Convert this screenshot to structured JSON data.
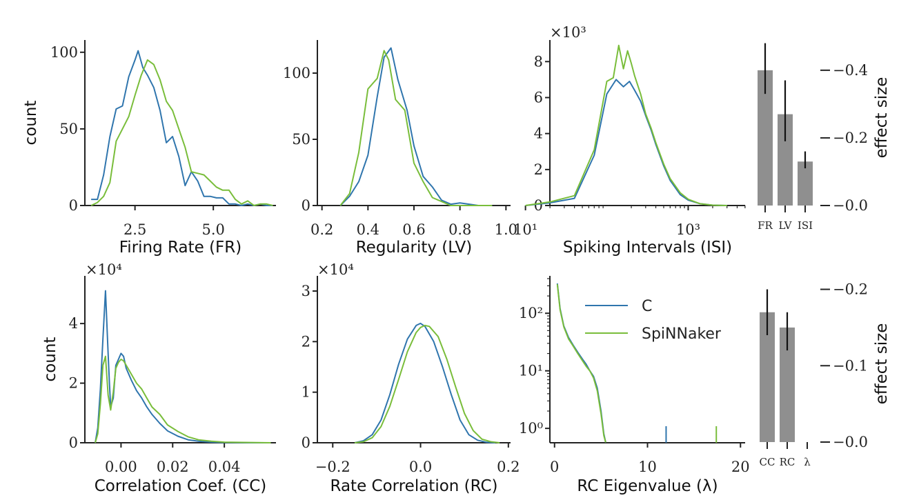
{
  "colors": {
    "C": "#2f75ad",
    "SpiNNaker": "#79bd3a",
    "bar": "#8f8f8f",
    "axis": "#222222"
  },
  "chart_data": [
    {
      "id": "fr",
      "type": "line",
      "xlabel": "Firing Rate (FR)",
      "ylabel": "count",
      "xlim": [
        0.9,
        7.0
      ],
      "ylim": [
        0,
        108
      ],
      "xticks": [
        {
          "v": 2.5,
          "label": "2.5"
        },
        {
          "v": 5.0,
          "label": "5.0"
        }
      ],
      "yticks": [
        {
          "v": 0,
          "label": "0"
        },
        {
          "v": 50,
          "label": "50"
        },
        {
          "v": 100,
          "label": "100"
        }
      ],
      "series": [
        {
          "name": "C",
          "x": [
            1.1,
            1.3,
            1.5,
            1.7,
            1.9,
            2.1,
            2.3,
            2.5,
            2.6,
            2.75,
            2.9,
            3.1,
            3.3,
            3.5,
            3.7,
            3.9,
            4.1,
            4.3,
            4.5,
            4.7,
            4.9,
            5.1,
            5.3,
            5.5,
            5.7,
            5.9,
            6.1,
            6.3,
            6.5,
            6.7,
            6.9
          ],
          "y": [
            4,
            4,
            20,
            45,
            63,
            65,
            84,
            95,
            101,
            90,
            85,
            77,
            62,
            41,
            45,
            32,
            13,
            22,
            16,
            6,
            6,
            5,
            5,
            1,
            1,
            0,
            1,
            0,
            1,
            0,
            0
          ]
        },
        {
          "name": "SpiNNaker",
          "x": [
            1.1,
            1.3,
            1.5,
            1.7,
            1.9,
            2.1,
            2.3,
            2.5,
            2.7,
            2.9,
            3.1,
            3.3,
            3.5,
            3.7,
            3.9,
            4.1,
            4.3,
            4.5,
            4.7,
            4.9,
            5.1,
            5.3,
            5.5,
            5.7,
            5.9,
            6.1,
            6.3,
            6.5,
            6.7,
            6.9
          ],
          "y": [
            0,
            2,
            6,
            15,
            42,
            50,
            58,
            72,
            85,
            95,
            92,
            82,
            68,
            62,
            50,
            38,
            22,
            21,
            20,
            16,
            12,
            10,
            10,
            4,
            1,
            3,
            0,
            1,
            1,
            0
          ]
        }
      ]
    },
    {
      "id": "lv",
      "type": "line",
      "xlabel": "Regularity (LV)",
      "ylabel": "",
      "xlim": [
        0.18,
        1.02
      ],
      "ylim": [
        0,
        125
      ],
      "xticks": [
        {
          "v": 0.2,
          "label": "0.2"
        },
        {
          "v": 0.4,
          "label": "0.4"
        },
        {
          "v": 0.6,
          "label": "0.6"
        },
        {
          "v": 0.8,
          "label": "0.8"
        },
        {
          "v": 1.0,
          "label": "1.0"
        }
      ],
      "yticks": [
        {
          "v": 0,
          "label": "0"
        },
        {
          "v": 50,
          "label": "50"
        },
        {
          "v": 100,
          "label": "100"
        }
      ],
      "series": [
        {
          "name": "C",
          "x": [
            0.28,
            0.32,
            0.36,
            0.4,
            0.44,
            0.47,
            0.5,
            0.53,
            0.57,
            0.6,
            0.64,
            0.68,
            0.72,
            0.76,
            0.8,
            0.84,
            0.88,
            0.94
          ],
          "y": [
            0,
            7,
            18,
            38,
            82,
            112,
            119,
            95,
            72,
            45,
            22,
            14,
            4,
            1,
            2,
            1,
            0,
            0
          ]
        },
        {
          "name": "SpiNNaker",
          "x": [
            0.28,
            0.32,
            0.36,
            0.4,
            0.44,
            0.47,
            0.49,
            0.52,
            0.56,
            0.6,
            0.64,
            0.68,
            0.72,
            0.76,
            0.8,
            0.84,
            0.88,
            0.94
          ],
          "y": [
            0,
            9,
            40,
            88,
            96,
            117,
            110,
            80,
            72,
            32,
            18,
            6,
            3,
            0,
            0,
            0,
            0,
            0
          ]
        }
      ]
    },
    {
      "id": "isi",
      "type": "line",
      "xscale": "log",
      "xlabel": "Spiking Intervals (ISI)",
      "ylabel": "",
      "multiplier": "×10³",
      "xlim": [
        1.3,
        3.7
      ],
      "ylim": [
        0,
        9.2
      ],
      "xticks": [
        {
          "v": 10,
          "label": "10¹"
        },
        {
          "v": 1000,
          "label": "10³"
        }
      ],
      "yticks": [
        {
          "v": 0,
          "label": "0"
        },
        {
          "v": 2,
          "label": "2"
        },
        {
          "v": 4,
          "label": "4"
        },
        {
          "v": 6,
          "label": "6"
        },
        {
          "v": 8,
          "label": "8"
        }
      ],
      "series": [
        {
          "name": "C",
          "x": [
            10,
            20,
            40,
            70,
            100,
            130,
            160,
            190,
            220,
            260,
            300,
            350,
            400,
            500,
            600,
            800,
            1000,
            1400,
            2000,
            3000
          ],
          "y": [
            0,
            0.15,
            0.4,
            2.8,
            6.2,
            7.0,
            6.6,
            6.9,
            6.4,
            5.8,
            5.0,
            4.2,
            3.4,
            2.2,
            1.4,
            0.6,
            0.3,
            0.1,
            0.02,
            0
          ]
        },
        {
          "name": "SpiNNaker",
          "x": [
            10,
            20,
            40,
            70,
            100,
            120,
            140,
            160,
            180,
            200,
            220,
            260,
            300,
            350,
            400,
            500,
            600,
            800,
            1000,
            1400,
            2000,
            3000
          ],
          "y": [
            0,
            0.2,
            0.55,
            3.1,
            6.9,
            7.1,
            8.9,
            7.6,
            8.6,
            7.9,
            7.2,
            6.2,
            5.1,
            4.3,
            3.5,
            2.3,
            1.5,
            0.7,
            0.35,
            0.1,
            0.02,
            0
          ]
        }
      ]
    },
    {
      "id": "es1",
      "type": "bar",
      "ylabel": "effect size",
      "categories": [
        "FR",
        "LV",
        "ISI"
      ],
      "values": [
        0.4,
        0.27,
        0.13
      ],
      "err_low": [
        0.33,
        0.19,
        0.11
      ],
      "err_high": [
        0.48,
        0.37,
        0.16
      ],
      "ylim": [
        0,
        0.52
      ],
      "yticks": [
        {
          "v": 0.0,
          "label": "0.0"
        },
        {
          "v": 0.2,
          "label": "0.2"
        },
        {
          "v": 0.4,
          "label": "0.4"
        }
      ],
      "tick_prefix": "−"
    },
    {
      "id": "cc",
      "type": "line",
      "xlabel": "Correlation Coef. (CC)",
      "ylabel": "count",
      "multiplier": "×10⁴",
      "xlim": [
        -0.014,
        0.06
      ],
      "ylim": [
        0,
        5.6
      ],
      "xticks": [
        {
          "v": 0.0,
          "label": "0.00"
        },
        {
          "v": 0.02,
          "label": "0.02"
        },
        {
          "v": 0.04,
          "label": "0.04"
        }
      ],
      "yticks": [
        {
          "v": 0,
          "label": "0"
        },
        {
          "v": 2,
          "label": "2"
        },
        {
          "v": 4,
          "label": "4"
        }
      ],
      "series": [
        {
          "name": "C",
          "x": [
            -0.01,
            -0.009,
            -0.008,
            -0.007,
            -0.006,
            -0.005,
            -0.0045,
            -0.004,
            -0.003,
            -0.002,
            -0.001,
            0.0,
            0.001,
            0.002,
            0.004,
            0.006,
            0.008,
            0.01,
            0.012,
            0.015,
            0.018,
            0.022,
            0.026,
            0.03,
            0.035,
            0.04,
            0.05,
            0.058
          ],
          "y": [
            0,
            0.5,
            1.8,
            3.5,
            5.1,
            3.0,
            2.0,
            1.2,
            1.5,
            2.6,
            2.8,
            3.0,
            2.9,
            2.5,
            2.1,
            1.75,
            1.5,
            1.2,
            0.95,
            0.65,
            0.4,
            0.22,
            0.1,
            0.05,
            0.02,
            0.01,
            0,
            0
          ]
        },
        {
          "name": "SpiNNaker",
          "x": [
            -0.01,
            -0.009,
            -0.008,
            -0.007,
            -0.006,
            -0.005,
            -0.004,
            -0.003,
            -0.002,
            -0.001,
            0.0,
            0.001,
            0.002,
            0.004,
            0.006,
            0.008,
            0.01,
            0.012,
            0.015,
            0.018,
            0.022,
            0.026,
            0.03,
            0.035,
            0.04,
            0.05,
            0.058
          ],
          "y": [
            0,
            0.3,
            1.3,
            2.6,
            2.9,
            1.6,
            1.1,
            1.7,
            2.5,
            2.7,
            2.8,
            2.75,
            2.6,
            2.3,
            2.0,
            1.8,
            1.5,
            1.2,
            0.95,
            0.6,
            0.38,
            0.2,
            0.1,
            0.05,
            0.02,
            0.01,
            0
          ]
        }
      ]
    },
    {
      "id": "rc",
      "type": "line",
      "xlabel": "Rate Correlation (RC)",
      "ylabel": "",
      "multiplier": "×10⁴",
      "xlim": [
        -0.235,
        0.205
      ],
      "ylim": [
        0,
        3.3
      ],
      "xticks": [
        {
          "v": -0.2,
          "label": "−0.2"
        },
        {
          "v": 0.0,
          "label": "0.0"
        },
        {
          "v": 0.2,
          "label": "0.2"
        }
      ],
      "yticks": [
        {
          "v": 0,
          "label": "0"
        },
        {
          "v": 1,
          "label": "1"
        },
        {
          "v": 2,
          "label": "2"
        },
        {
          "v": 3,
          "label": "3"
        }
      ],
      "series": [
        {
          "name": "C",
          "x": [
            -0.15,
            -0.13,
            -0.11,
            -0.09,
            -0.07,
            -0.05,
            -0.03,
            -0.01,
            0.0,
            0.01,
            0.03,
            0.05,
            0.07,
            0.09,
            0.11,
            0.13,
            0.15,
            0.17
          ],
          "y": [
            0,
            0.04,
            0.16,
            0.45,
            0.95,
            1.55,
            2.05,
            2.32,
            2.36,
            2.3,
            2.0,
            1.5,
            0.95,
            0.45,
            0.16,
            0.05,
            0.01,
            0
          ]
        },
        {
          "name": "SpiNNaker",
          "x": [
            -0.15,
            -0.13,
            -0.11,
            -0.09,
            -0.07,
            -0.05,
            -0.03,
            -0.01,
            0.0,
            0.01,
            0.02,
            0.04,
            0.06,
            0.08,
            0.1,
            0.12,
            0.14,
            0.16,
            0.18
          ],
          "y": [
            0,
            0.02,
            0.1,
            0.32,
            0.72,
            1.25,
            1.8,
            2.18,
            2.28,
            2.32,
            2.3,
            2.1,
            1.65,
            1.1,
            0.58,
            0.24,
            0.07,
            0.02,
            0
          ]
        }
      ]
    },
    {
      "id": "eig",
      "type": "line",
      "yscale": "log",
      "xlabel": "RC Eigenvalue (λ)",
      "ylabel": "",
      "xlim": [
        -0.5,
        20.5
      ],
      "ylim": [
        -0.25,
        2.65
      ],
      "xticks": [
        {
          "v": 0,
          "label": "0"
        },
        {
          "v": 10,
          "label": "10"
        },
        {
          "v": 20,
          "label": "20"
        }
      ],
      "yticks": [
        {
          "v": 1,
          "label": "10⁰"
        },
        {
          "v": 10,
          "label": "10¹"
        },
        {
          "v": 100,
          "label": "10²"
        }
      ],
      "legend": {
        "placement": "upper-right",
        "entries": [
          "C",
          "SpiNNaker"
        ]
      },
      "series": [
        {
          "name": "C",
          "x": [
            0.3,
            0.6,
            1.0,
            1.5,
            2.0,
            2.5,
            3.0,
            3.4,
            3.8,
            4.2,
            4.6,
            5.0,
            5.3,
            5.5
          ],
          "y": [
            330,
            120,
            60,
            38,
            28,
            21,
            16,
            13,
            10,
            8,
            5,
            2,
            0.8,
            0.57
          ]
        },
        {
          "name": "SpiNNaker",
          "x": [
            0.3,
            0.6,
            1.0,
            1.5,
            2.0,
            2.5,
            3.0,
            3.4,
            3.8,
            4.2,
            4.6,
            5.0,
            5.3,
            5.5
          ],
          "y": [
            320,
            115,
            58,
            36,
            27,
            20,
            15,
            12,
            10,
            7.5,
            4.5,
            1.8,
            0.75,
            0.57
          ]
        }
      ],
      "rugs": [
        {
          "name": "C",
          "x": 12.0
        },
        {
          "name": "SpiNNaker",
          "x": 17.4
        }
      ]
    },
    {
      "id": "es2",
      "type": "bar",
      "ylabel": "effect size",
      "categories": [
        "CC",
        "RC",
        "λ"
      ],
      "values": [
        0.17,
        0.15,
        0
      ],
      "err_low": [
        0.14,
        0.12,
        0
      ],
      "err_high": [
        0.2,
        0.17,
        0
      ],
      "ylim": [
        0,
        0.205
      ],
      "yticks": [
        {
          "v": 0.0,
          "label": "0.0"
        },
        {
          "v": 0.1,
          "label": "0.1"
        },
        {
          "v": 0.2,
          "label": "0.2"
        }
      ],
      "tick_prefix": "−"
    }
  ]
}
